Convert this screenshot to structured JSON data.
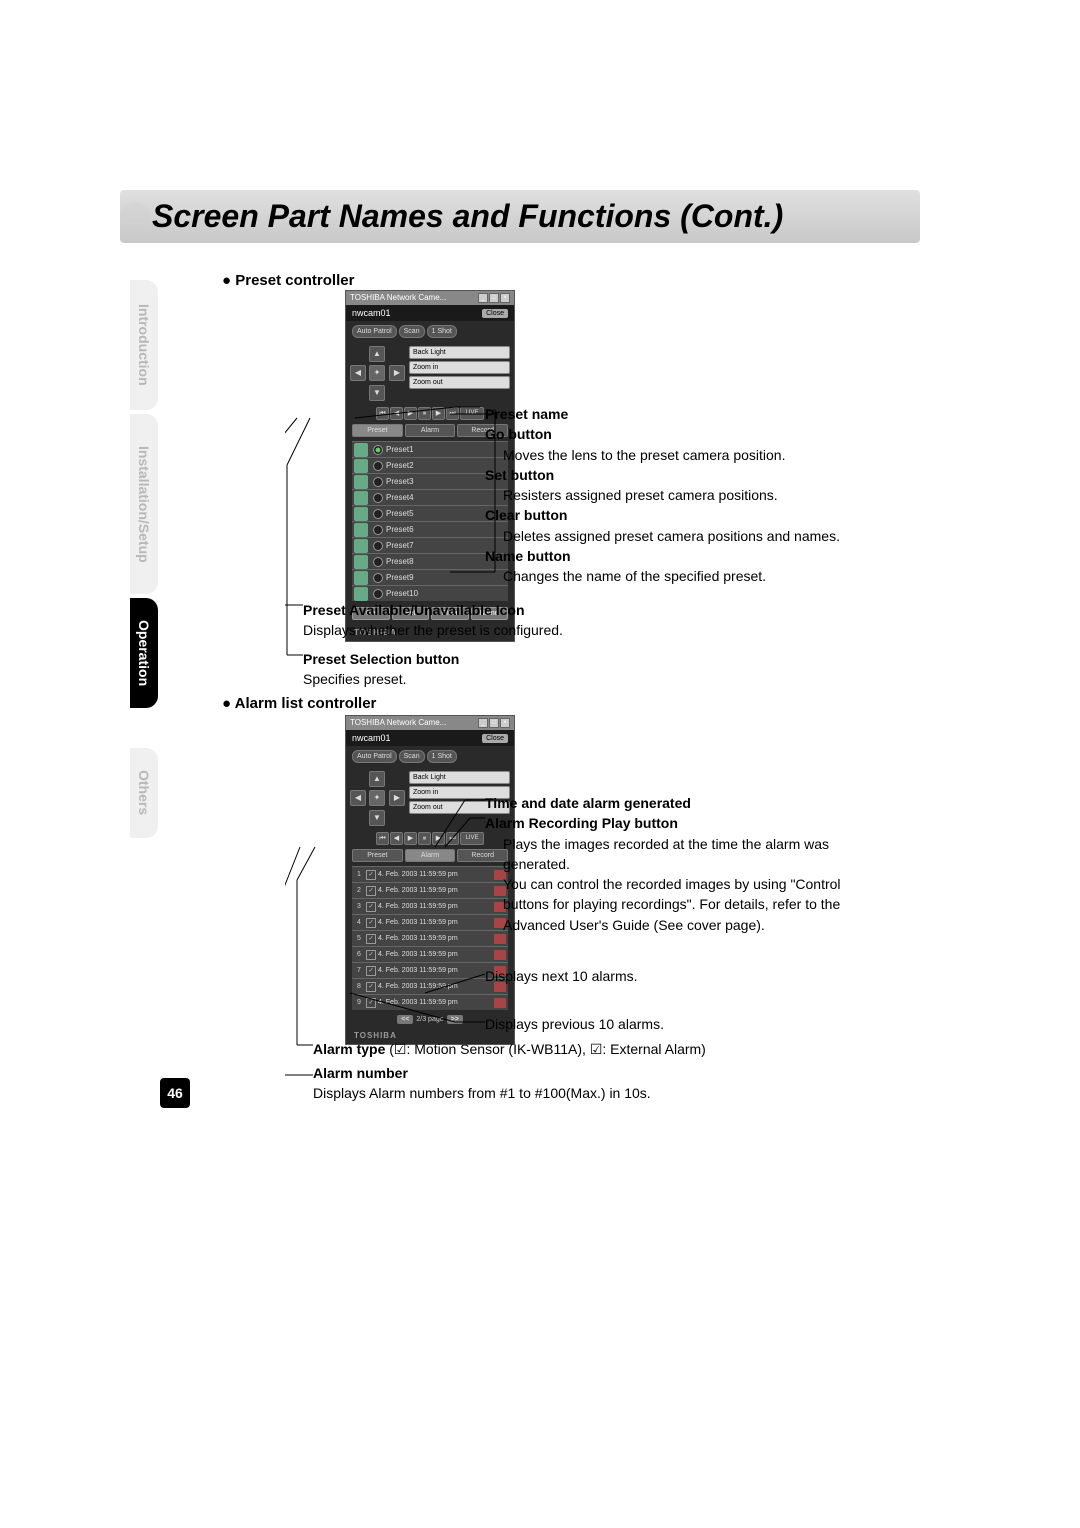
{
  "page_title": "Screen Part Names and Functions (Cont.)",
  "page_number": "46",
  "side_tabs": {
    "intro": "Introduction",
    "install": "Installation/Setup",
    "operation": "Operation",
    "others": "Others"
  },
  "sections": {
    "preset_heading": "Preset controller",
    "alarm_heading": "Alarm list controller"
  },
  "panel": {
    "window_title": "TOSHIBA Network Came...",
    "cam_name": "nwcam01",
    "close_label": "Close",
    "auto_patrol": "Auto Patrol",
    "scan": "Scan",
    "oneshot": "1 Shot",
    "backlight": "Back Light",
    "zoom_in": "Zoom in",
    "zoom_out": "Zoom out",
    "live": "LIVE",
    "tabs": {
      "preset": "Preset",
      "alarm": "Alarm",
      "record": "Record"
    },
    "brand": "TOSHIBA"
  },
  "presets": {
    "items": [
      "Preset1",
      "Preset2",
      "Preset3",
      "Preset4",
      "Preset5",
      "Preset6",
      "Preset7",
      "Preset8",
      "Preset9",
      "Preset10"
    ],
    "buttons": {
      "go": "Go",
      "set": "Set",
      "clear": "Clear",
      "name": "Name"
    }
  },
  "alarms": {
    "timestamps": [
      "4. Feb. 2003 11:59:59 pm",
      "4. Feb. 2003 11:59:59 pm",
      "4. Feb. 2003 11:59:59 pm",
      "4. Feb. 2003 11:59:59 pm",
      "4. Feb. 2003 11:59:59 pm",
      "4. Feb. 2003 11:59:59 pm",
      "4. Feb. 2003 11:59:59 pm",
      "4. Feb. 2003 11:59:59 pm",
      "4. Feb. 2003 11:59:59 pm"
    ],
    "pager_prev": "<<",
    "pager_next": ">>",
    "pager_label": "2/3 page"
  },
  "annotations": {
    "preset_name": {
      "title": "Preset name"
    },
    "go_button": {
      "title": "Go button",
      "desc": "Moves the lens to the preset camera position."
    },
    "set_button": {
      "title": "Set button",
      "desc": "Resisters assigned preset camera positions."
    },
    "clear_button": {
      "title": "Clear button",
      "desc": "Deletes assigned preset camera positions and names."
    },
    "name_button": {
      "title": "Name button",
      "desc": "Changes the name of the specified preset."
    },
    "available_icon": {
      "title": "Preset Available/Unavailable Icon",
      "desc": "Displays whether the preset is configured."
    },
    "selection_button": {
      "title": "Preset Selection button",
      "desc": "Specifies preset."
    },
    "time_date": {
      "title": "Time and date alarm generated"
    },
    "play_button": {
      "title": "Alarm Recording Play button",
      "desc": "Plays the images recorded at the time the alarm was generated.\nYou can control the recorded images by using \"Control buttons for playing recordings\". For details, refer to the Advanced User's Guide (See cover page)."
    },
    "next10": "Displays next 10 alarms.",
    "prev10": "Displays previous 10 alarms.",
    "alarm_type": {
      "title": "Alarm type",
      "desc": "(☑: Motion Sensor (IK-WB11A), ☑: External Alarm)"
    },
    "alarm_number": {
      "title": "Alarm number",
      "desc": "Displays Alarm numbers from #1 to #100(Max.) in 10s."
    }
  }
}
